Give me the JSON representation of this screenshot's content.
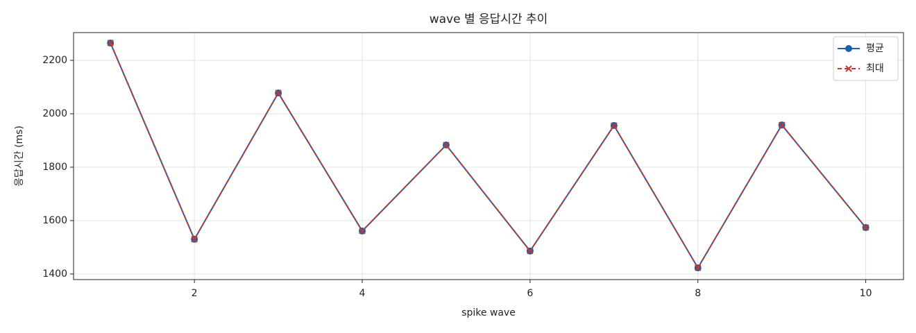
{
  "chart_data": {
    "type": "line",
    "title": "wave 별 응답시간 추이",
    "x_label": "spike wave",
    "y_label": "응답시간 (ms)",
    "x": [
      1,
      2,
      3,
      4,
      5,
      6,
      7,
      8,
      9,
      10
    ],
    "series": [
      {
        "name": "평균",
        "color": "#1f5fb0",
        "marker": "o",
        "linestyle": "solid",
        "values": [
          2265,
          1530,
          2078,
          1561,
          1883,
          1486,
          1956,
          1423,
          1958,
          1574
        ]
      },
      {
        "name": "최대",
        "color": "#c0392b",
        "marker": "x",
        "linestyle": "dashed",
        "values": [
          2265,
          1530,
          2078,
          1561,
          1883,
          1486,
          1956,
          1423,
          1958,
          1574
        ]
      }
    ],
    "xlim": [
      0.56,
      10.45
    ],
    "ylim": [
      1379,
      2304
    ],
    "xticks": [
      2,
      4,
      6,
      8,
      10
    ],
    "yticks": [
      1400,
      1600,
      1800,
      2000,
      2200
    ],
    "grid": true,
    "legend": "upper right"
  }
}
